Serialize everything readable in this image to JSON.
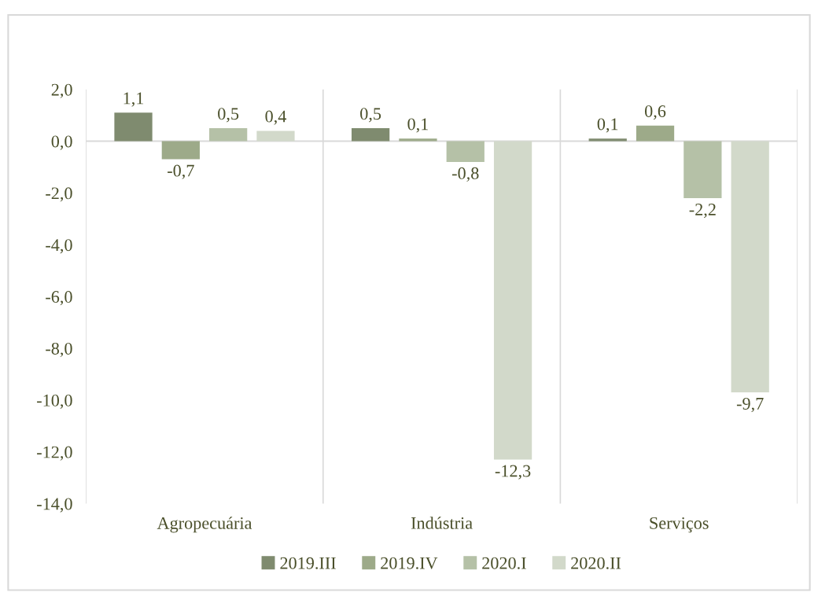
{
  "chart_data": {
    "type": "bar",
    "categories": [
      "Agropecuária",
      "Indústria",
      "Serviços"
    ],
    "series": [
      {
        "name": "2019.III",
        "color": "#7f8b6f",
        "values": [
          1.1,
          0.5,
          0.1
        ],
        "value_labels": [
          "1,1",
          "0,5",
          "0,1"
        ]
      },
      {
        "name": "2019.IV",
        "color": "#9daa89",
        "values": [
          -0.7,
          0.1,
          0.6
        ],
        "value_labels": [
          "-0,7",
          "0,1",
          "0,6"
        ]
      },
      {
        "name": "2020.I",
        "color": "#b5c1a7",
        "values": [
          0.5,
          -0.8,
          -2.2
        ],
        "value_labels": [
          "0,5",
          "-0,8",
          "-2,2"
        ]
      },
      {
        "name": "2020.II",
        "color": "#d2d9ca",
        "values": [
          0.4,
          -12.3,
          -9.7
        ],
        "value_labels": [
          "0,4",
          "-12,3",
          "-9,7"
        ]
      }
    ],
    "ylim": [
      -14,
      2
    ],
    "yticks": [
      {
        "value": -14,
        "label": "-14,0"
      },
      {
        "value": -12,
        "label": "-12,0"
      },
      {
        "value": -10,
        "label": "-10,0"
      },
      {
        "value": -8,
        "label": "-8,0"
      },
      {
        "value": -6,
        "label": "-6,0"
      },
      {
        "value": -4,
        "label": "-4,0"
      },
      {
        "value": -2,
        "label": "-2,0"
      },
      {
        "value": 0,
        "label": "0,0"
      },
      {
        "value": 2,
        "label": "2,0"
      }
    ],
    "grid": "x",
    "legend": "bottom"
  }
}
